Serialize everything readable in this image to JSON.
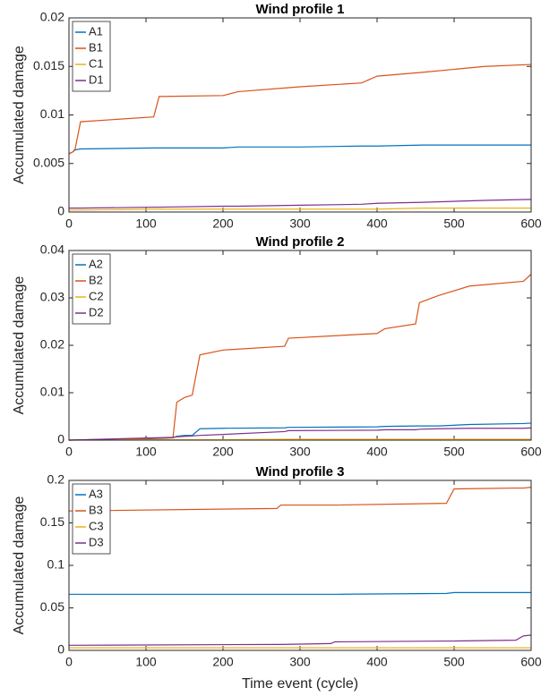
{
  "chart_data": [
    {
      "type": "line",
      "title": "Wind profile 1",
      "ylabel": "Accumulated damage",
      "x": [
        0,
        5,
        8,
        15,
        110,
        117,
        200,
        220,
        300,
        380,
        400,
        460,
        540,
        600
      ],
      "series": [
        {
          "name": "A1",
          "color": "#0072BD",
          "values": [
            0.006,
            0.0062,
            0.0064,
            0.0065,
            0.0066,
            0.0066,
            0.0066,
            0.0067,
            0.0067,
            0.0068,
            0.0068,
            0.0069,
            0.0069,
            0.0069
          ]
        },
        {
          "name": "B1",
          "color": "#D95319",
          "values": [
            0.006,
            0.0062,
            0.0065,
            0.0093,
            0.0098,
            0.0119,
            0.012,
            0.0124,
            0.0129,
            0.0133,
            0.014,
            0.0144,
            0.015,
            0.0152
          ]
        },
        {
          "name": "C1",
          "color": "#EDB120",
          "values": [
            0.0002,
            0.0002,
            0.0002,
            0.0002,
            0.0003,
            0.0003,
            0.0003,
            0.0003,
            0.0003,
            0.0003,
            0.0003,
            0.0004,
            0.0004,
            0.0004
          ]
        },
        {
          "name": "D1",
          "color": "#7E2F8E",
          "values": [
            0.0004,
            0.0004,
            0.0004,
            0.0004,
            0.0005,
            0.0005,
            0.0006,
            0.0006,
            0.0007,
            0.0008,
            0.0009,
            0.001,
            0.0012,
            0.0013
          ]
        }
      ],
      "xlim": [
        0,
        600
      ],
      "xticks": [
        0,
        100,
        200,
        300,
        400,
        500,
        600
      ],
      "ylim": [
        0,
        0.02
      ],
      "yticks": [
        0,
        0.005,
        0.01,
        0.015,
        0.02
      ],
      "legend": "upper-left"
    },
    {
      "type": "line",
      "title": "Wind profile 2",
      "ylabel": "Accumulated damage",
      "x": [
        0,
        90,
        135,
        140,
        150,
        160,
        170,
        200,
        280,
        285,
        400,
        410,
        450,
        455,
        480,
        520,
        590,
        600
      ],
      "series": [
        {
          "name": "A2",
          "color": "#0072BD",
          "values": [
            0,
            0.0002,
            0.0005,
            0.0008,
            0.001,
            0.001,
            0.0024,
            0.0025,
            0.0026,
            0.0027,
            0.0028,
            0.0029,
            0.003,
            0.003,
            0.003,
            0.0033,
            0.0035,
            0.0036
          ]
        },
        {
          "name": "B2",
          "color": "#D95319",
          "values": [
            0,
            0.0003,
            0.0005,
            0.008,
            0.009,
            0.0095,
            0.018,
            0.019,
            0.0198,
            0.0215,
            0.0225,
            0.0235,
            0.0245,
            0.029,
            0.0305,
            0.0325,
            0.0335,
            0.035
          ]
        },
        {
          "name": "C2",
          "color": "#EDB120",
          "values": [
            0,
            0.0001,
            0.0001,
            0.0001,
            0.0001,
            0.0001,
            0.0001,
            0.0001,
            0.0002,
            0.0002,
            0.0002,
            0.0002,
            0.0002,
            0.0002,
            0.0002,
            0.0002,
            0.0002,
            0.0002
          ]
        },
        {
          "name": "D2",
          "color": "#7E2F8E",
          "values": [
            0,
            0.0004,
            0.0006,
            0.0007,
            0.0008,
            0.0009,
            0.001,
            0.0012,
            0.0018,
            0.002,
            0.0021,
            0.0022,
            0.0022,
            0.0023,
            0.0024,
            0.0025,
            0.0025,
            0.0026
          ]
        }
      ],
      "xlim": [
        0,
        600
      ],
      "xticks": [
        0,
        100,
        200,
        300,
        400,
        500,
        600
      ],
      "ylim": [
        0,
        0.04
      ],
      "yticks": [
        0,
        0.01,
        0.02,
        0.03,
        0.04
      ],
      "legend": "upper-left"
    },
    {
      "type": "line",
      "title": "Wind profile 3",
      "ylabel": "Accumulated damage",
      "xlabel": "Time event (cycle)",
      "x": [
        0,
        270,
        275,
        340,
        345,
        490,
        500,
        580,
        590,
        600
      ],
      "series": [
        {
          "name": "A3",
          "color": "#0072BD",
          "values": [
            0.066,
            0.066,
            0.066,
            0.066,
            0.066,
            0.067,
            0.068,
            0.068,
            0.068,
            0.068
          ]
        },
        {
          "name": "B3",
          "color": "#D95319",
          "values": [
            0.164,
            0.167,
            0.171,
            0.171,
            0.171,
            0.173,
            0.19,
            0.191,
            0.191,
            0.192
          ]
        },
        {
          "name": "C3",
          "color": "#EDB120",
          "values": [
            0.003,
            0.003,
            0.003,
            0.003,
            0.003,
            0.003,
            0.003,
            0.003,
            0.003,
            0.003
          ]
        },
        {
          "name": "D3",
          "color": "#7E2F8E",
          "values": [
            0.006,
            0.007,
            0.007,
            0.008,
            0.01,
            0.011,
            0.011,
            0.012,
            0.017,
            0.018
          ]
        }
      ],
      "xlim": [
        0,
        600
      ],
      "xticks": [
        0,
        100,
        200,
        300,
        400,
        500,
        600
      ],
      "ylim": [
        0,
        0.2
      ],
      "yticks": [
        0,
        0.05,
        0.1,
        0.15,
        0.2
      ],
      "legend": "upper-left"
    }
  ]
}
